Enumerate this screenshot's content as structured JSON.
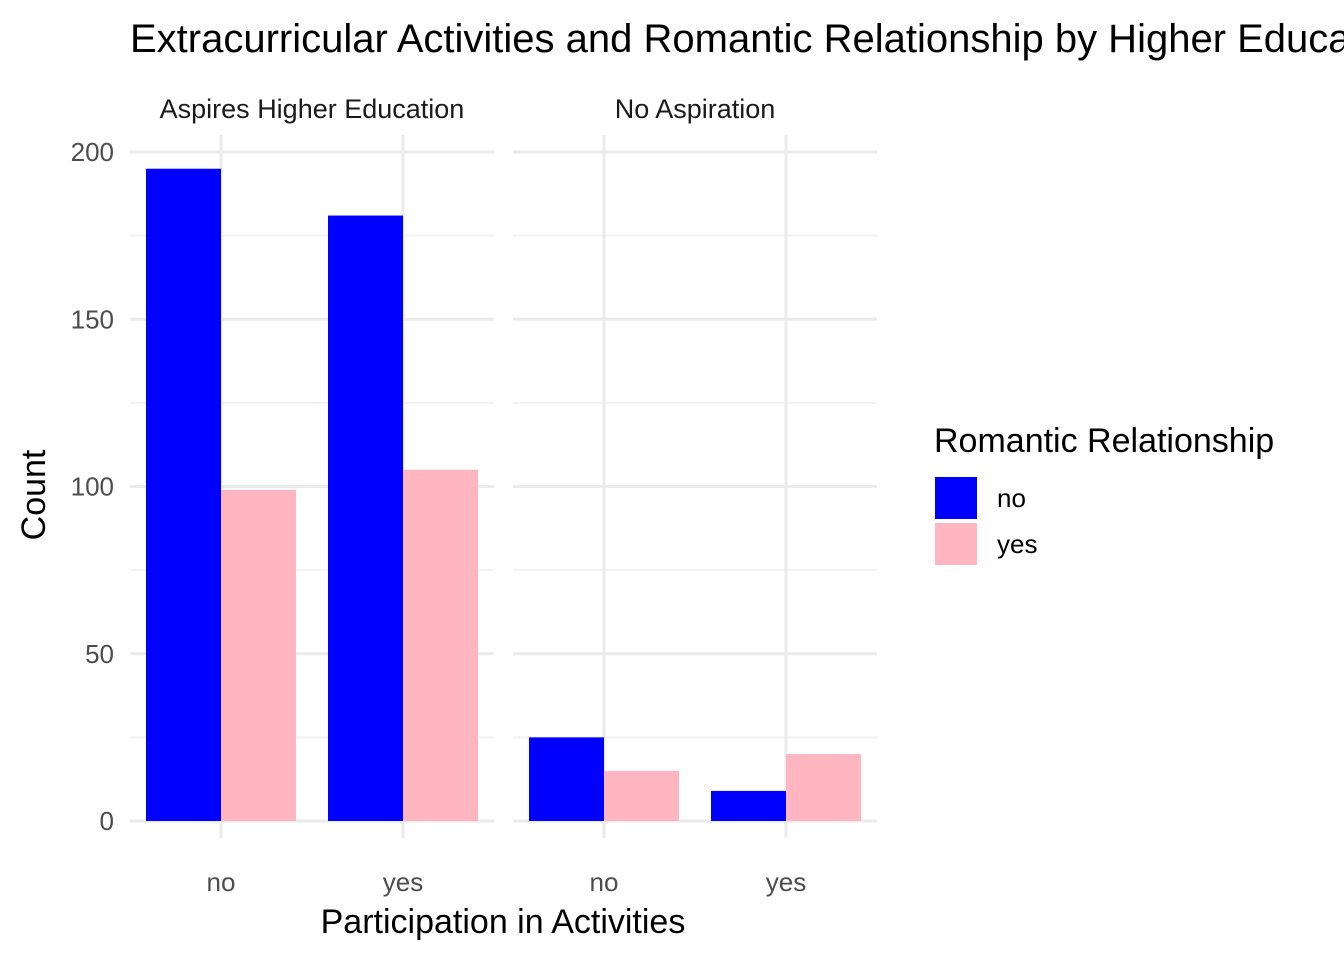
{
  "chart_data": {
    "type": "bar",
    "title": "Extracurricular Activities and Romantic Relationship by Higher Education Aspiration",
    "xlabel": "Participation in Activities",
    "ylabel": "Count",
    "ylim": [
      0,
      200
    ],
    "yticks": [
      0,
      50,
      100,
      150,
      200
    ],
    "grid": true,
    "legend": {
      "title": "Romantic Relationship",
      "placement": "right",
      "entries": [
        {
          "label": "no",
          "color": "#0000ff"
        },
        {
          "label": "yes",
          "color": "#ffb6c1"
        }
      ]
    },
    "facets": [
      {
        "label": "Aspires Higher Education",
        "categories": [
          "no",
          "yes"
        ],
        "series": [
          {
            "name": "no",
            "values": [
              195,
              181
            ]
          },
          {
            "name": "yes",
            "values": [
              99,
              105
            ]
          }
        ]
      },
      {
        "label": "No Aspiration",
        "categories": [
          "no",
          "yes"
        ],
        "series": [
          {
            "name": "no",
            "values": [
              25,
              9
            ]
          },
          {
            "name": "yes",
            "values": [
              15,
              20
            ]
          }
        ]
      }
    ]
  }
}
